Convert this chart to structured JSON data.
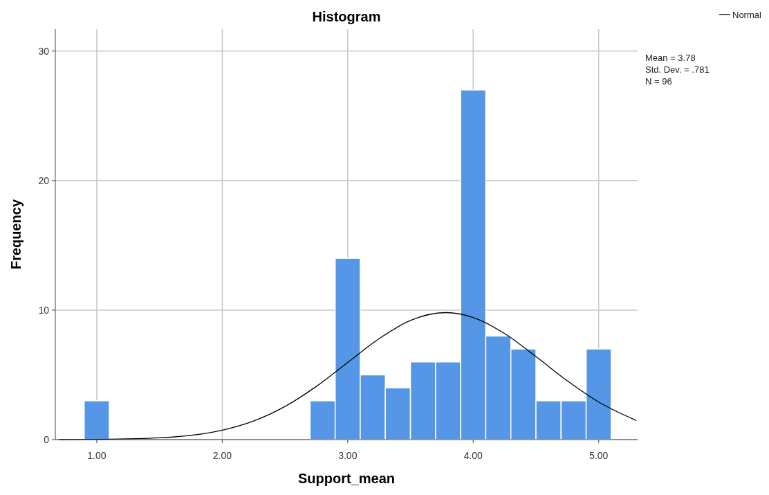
{
  "chart_data": {
    "type": "histogram",
    "title": "Histogram",
    "xlabel": "Support_mean",
    "ylabel": "Frequency",
    "xlim": [
      0.67,
      5.31
    ],
    "xticks": [
      {
        "value": 1,
        "label": "1.00"
      },
      {
        "value": 2,
        "label": "2.00"
      },
      {
        "value": 3,
        "label": "3.00"
      },
      {
        "value": 4,
        "label": "4.00"
      },
      {
        "value": 5,
        "label": "5.00"
      }
    ],
    "ylim": [
      0,
      31.7
    ],
    "yticks": [
      0,
      10,
      20,
      30
    ],
    "grid": true,
    "legend": "top right",
    "annotations": [
      "Mean = 3.78",
      "Std. Dev. = .781",
      "N = 96"
    ],
    "series": [
      {
        "color": "#5596e6",
        "bins": [
          0.9,
          1.1,
          1.3,
          1.5,
          1.7,
          1.9,
          2.1,
          2.3,
          2.5,
          2.7,
          2.9,
          3.1,
          3.3,
          3.5,
          3.7,
          3.9,
          4.1,
          4.3,
          4.5,
          4.7,
          4.9,
          5.1
        ],
        "values": [
          3,
          0,
          0,
          0,
          0,
          0,
          0,
          0,
          0,
          3,
          14,
          5,
          4,
          6,
          6,
          27,
          8,
          7,
          3,
          3,
          7
        ]
      },
      {
        "type": "line",
        "name": "Normal",
        "color": "#000000",
        "x": [
          0.7,
          1,
          1.5,
          2,
          2.25,
          2.5,
          2.75,
          3,
          3.25,
          3.5,
          3.78,
          4,
          4.25,
          4.5,
          4.75,
          5,
          5.3
        ],
        "values": [
          0,
          0.02,
          0.14,
          0.73,
          1.44,
          2.56,
          4.11,
          5.96,
          7.79,
          9.2,
          9.81,
          9.43,
          8.19,
          6.41,
          4.54,
          2.9,
          1.48
        ]
      }
    ]
  }
}
